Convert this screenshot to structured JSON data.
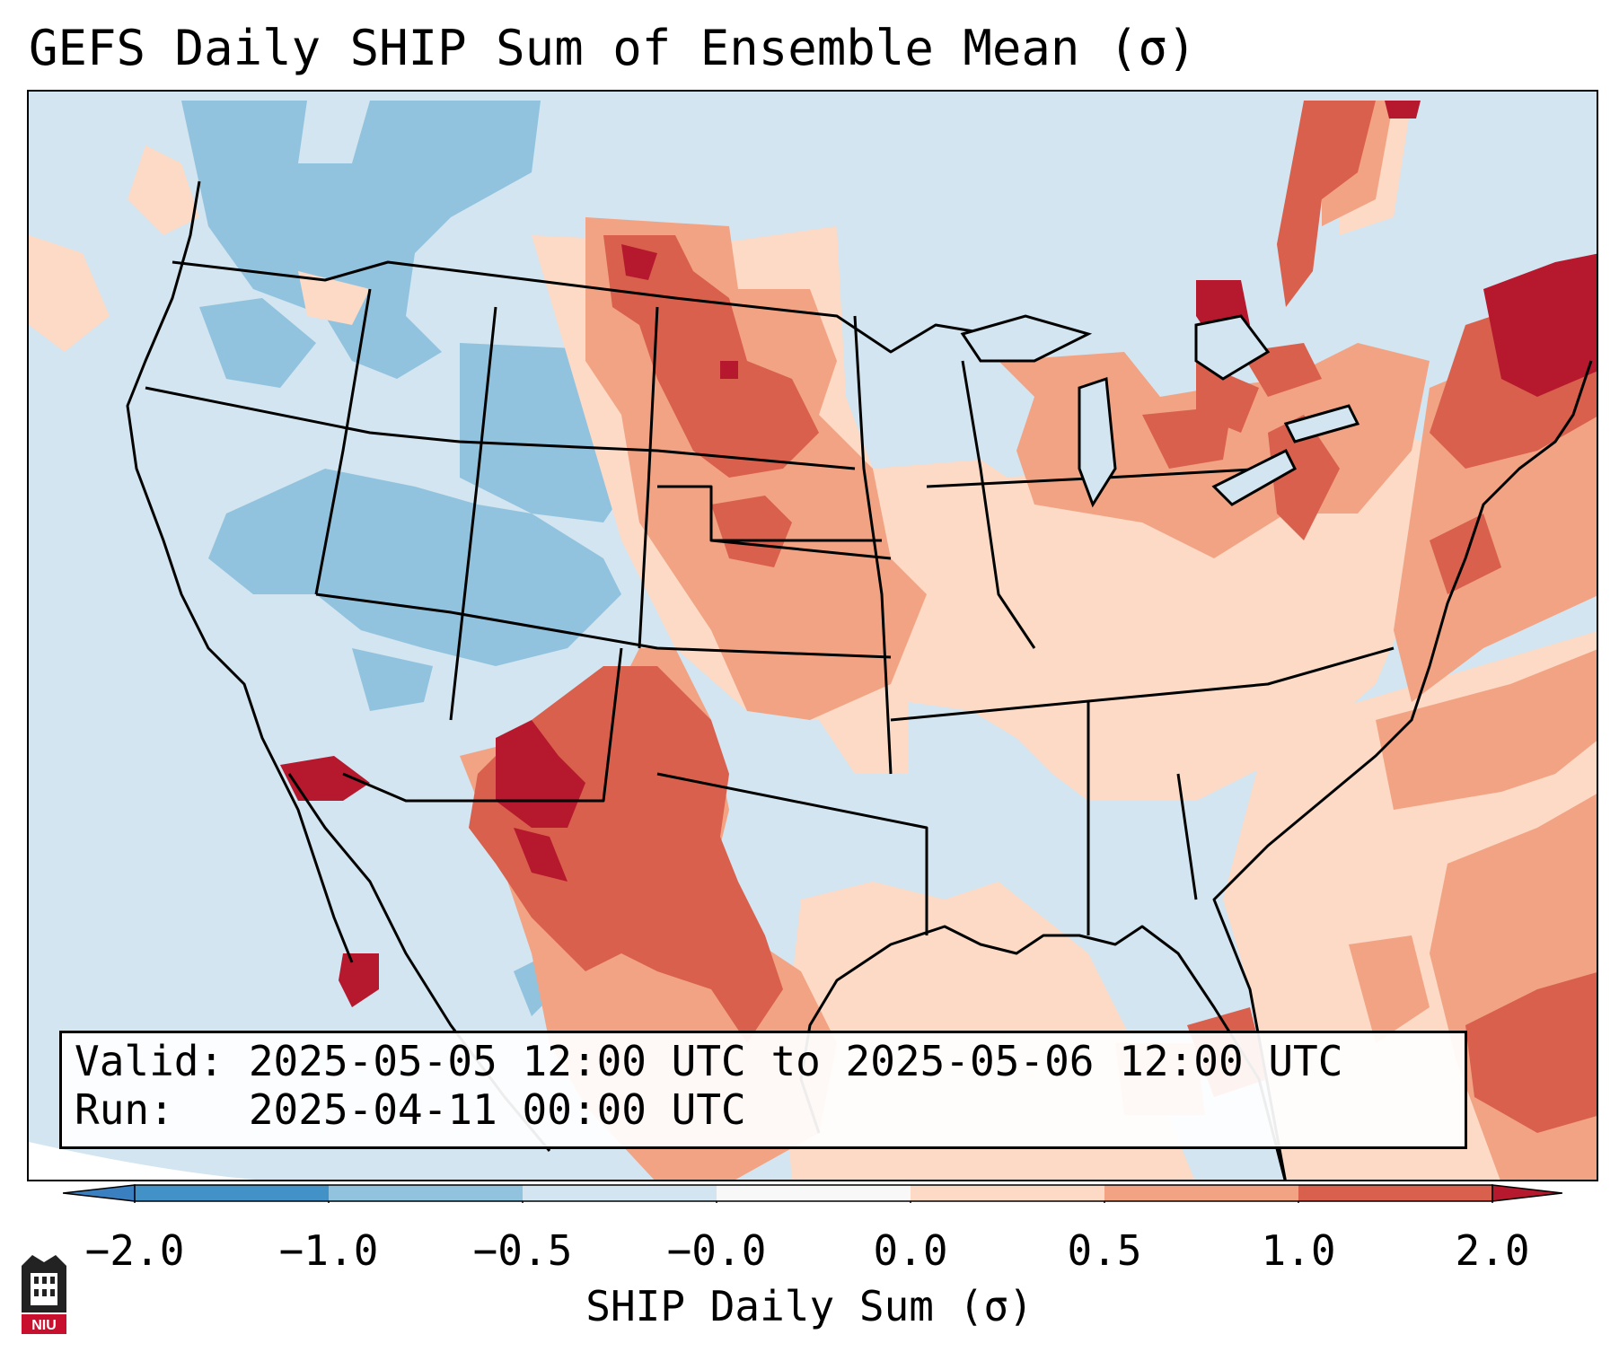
{
  "title": "GEFS Daily SHIP Sum of Ensemble Mean (σ)",
  "info": {
    "valid": "Valid: 2025-05-05 12:00 UTC to 2025-05-06 12:00 UTC",
    "run": "Run:   2025-04-11 00:00 UTC"
  },
  "colorbar": {
    "label": "SHIP Daily Sum (σ)",
    "ticks": [
      "−2.0",
      "−1.0",
      "−0.5",
      "−0.0",
      "0.0",
      "0.5",
      "1.0",
      "2.0"
    ],
    "colors": [
      "#4291c7",
      "#91c2de",
      "#d2e5f0",
      "#f8f8f8",
      "#fcdac6",
      "#f2a383",
      "#d8604d",
      "#b6182d"
    ]
  },
  "logo": {
    "text": "NIU"
  }
}
